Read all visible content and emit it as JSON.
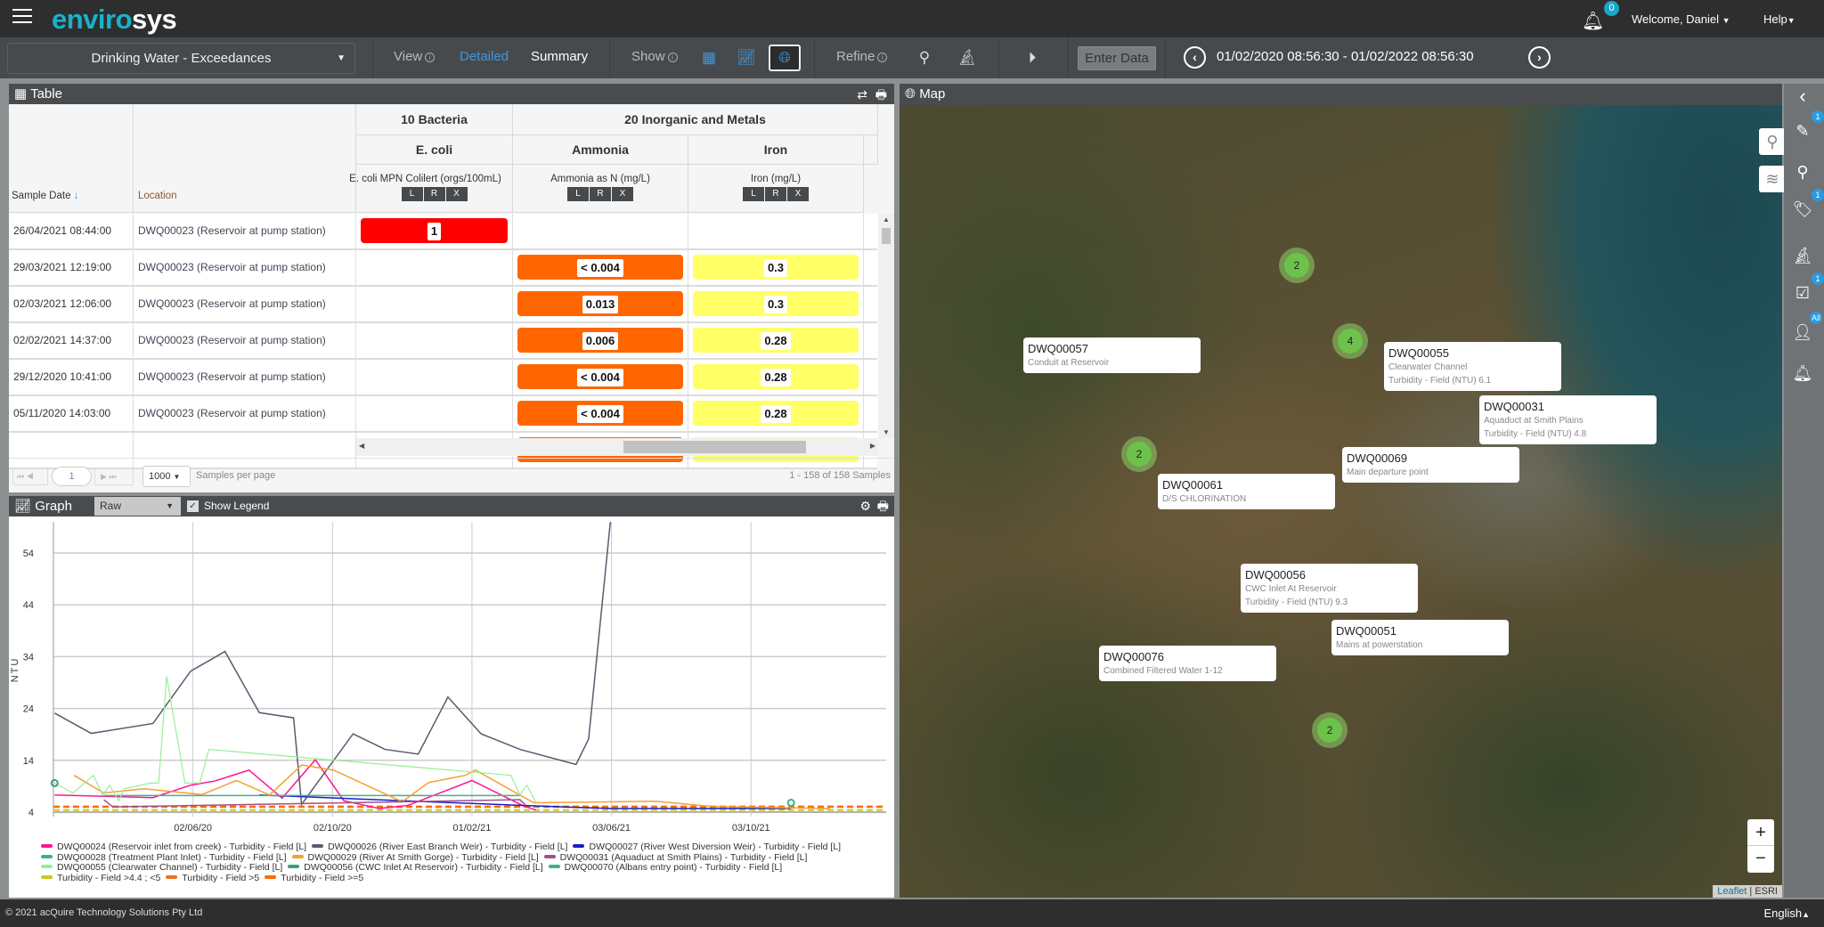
{
  "app": {
    "logo_a": "enviro",
    "logo_b": "sys",
    "notifications": "0",
    "welcome": "Welcome, Daniel",
    "help": "Help"
  },
  "toolbar": {
    "dataset": "Drinking Water - Exceedances",
    "view_label": "View",
    "view_detailed": "Detailed",
    "view_summary": "Summary",
    "show_label": "Show",
    "refine_label": "Refine",
    "enter_data": "Enter Data",
    "date_range": "01/02/2020 08:56:30 - 01/02/2022 08:56:30"
  },
  "table": {
    "title": "Table",
    "headers": {
      "sample_date": "Sample Date",
      "location": "Location",
      "group1": "10 Bacteria",
      "group2": "20 Inorganic and Metals",
      "col_ecoli": "E. coli",
      "col_ammonia": "Ammonia",
      "col_iron": "Iron",
      "sub_ecoli": "E. coli MPN Colilert (orgs/100mL)",
      "sub_ammonia": "Ammonia as N (mg/L)",
      "sub_iron": "Iron (mg/L)",
      "flag_l": "L",
      "flag_r": "R",
      "flag_x": "X"
    },
    "rows": [
      {
        "date": "26/04/2021 08:44:00",
        "location": "DWQ00023 (Reservoir at pump station)",
        "ecoli": "1",
        "ammonia": "",
        "iron": ""
      },
      {
        "date": "29/03/2021 12:19:00",
        "location": "DWQ00023 (Reservoir at pump station)",
        "ecoli": "",
        "ammonia": "< 0.004",
        "iron": "0.3"
      },
      {
        "date": "02/03/2021 12:06:00",
        "location": "DWQ00023 (Reservoir at pump station)",
        "ecoli": "",
        "ammonia": "0.013",
        "iron": "0.3"
      },
      {
        "date": "02/02/2021 14:37:00",
        "location": "DWQ00023 (Reservoir at pump station)",
        "ecoli": "",
        "ammonia": "0.006",
        "iron": "0.28"
      },
      {
        "date": "29/12/2020 10:41:00",
        "location": "DWQ00023 (Reservoir at pump station)",
        "ecoli": "",
        "ammonia": "< 0.004",
        "iron": "0.28"
      },
      {
        "date": "05/11/2020 14:03:00",
        "location": "DWQ00023 (Reservoir at pump station)",
        "ecoli": "",
        "ammonia": "< 0.004",
        "iron": "0.28"
      }
    ],
    "colors": {
      "ecoli": "#ff0000",
      "ammonia": "#ff6600",
      "iron": "#ffff66"
    },
    "pager": {
      "page": "1",
      "per_page": "1000",
      "per_page_label": "Samples per page",
      "summary": "1 - 158 of 158 Samples"
    }
  },
  "graph": {
    "title": "Graph",
    "mode": "Raw",
    "show_legend": "Show Legend"
  },
  "chart_data": {
    "type": "line",
    "ylabel": "NTU",
    "ylim": [
      4,
      60
    ],
    "yticks": [
      4,
      14,
      24,
      34,
      44,
      54
    ],
    "xlim": [
      "2020-02-01",
      "2022-02-01"
    ],
    "xticks": [
      {
        "date": "2020-06-02",
        "label": "02/06/20"
      },
      {
        "date": "2020-10-02",
        "label": "02/10/20"
      },
      {
        "date": "2021-02-01",
        "label": "01/02/21"
      },
      {
        "date": "2021-06-03",
        "label": "03/06/21"
      },
      {
        "date": "2021-10-03",
        "label": "03/10/21"
      }
    ],
    "series": [
      {
        "name": "DWQ00024 (Reservoir inlet from creek) - Turbidity - Field [L]",
        "color": "#ff1493",
        "points": [
          [
            "2020-02-02",
            7.3
          ],
          [
            "2020-04-28",
            6.8
          ],
          [
            "2020-05-31",
            9.2
          ],
          [
            "2020-06-21",
            10.0
          ],
          [
            "2020-07-21",
            12.1
          ],
          [
            "2020-08-19",
            6.7
          ],
          [
            "2020-09-17",
            14.1
          ],
          [
            "2020-10-12",
            6.2
          ],
          [
            "2020-11-12",
            4.7
          ],
          [
            "2020-12-07",
            5.3
          ],
          [
            "2021-02-01",
            10.1
          ],
          [
            "2021-03-17",
            5.3
          ],
          [
            "2021-03-29",
            4.4
          ]
        ]
      },
      {
        "name": "DWQ00026 (River East Branch Weir) - Turbidity - Field [L]",
        "color": "#5a5a70",
        "points": [
          [
            "2020-02-02",
            23.1
          ],
          [
            "2020-03-05",
            19.2
          ],
          [
            "2020-04-28",
            21.1
          ],
          [
            "2020-05-31",
            31.2
          ],
          [
            "2020-06-30",
            35.0
          ],
          [
            "2020-07-30",
            23.2
          ],
          [
            "2020-08-29",
            22.2
          ],
          [
            "2020-09-05",
            5.5
          ],
          [
            "2020-10-20",
            19.1
          ],
          [
            "2020-11-17",
            16.1
          ],
          [
            "2020-12-16",
            15.2
          ],
          [
            "2021-01-11",
            26.2
          ],
          [
            "2021-02-09",
            19.1
          ],
          [
            "2021-03-15",
            16.1
          ],
          [
            "2021-05-03",
            13.2
          ],
          [
            "2021-05-14",
            18.1
          ],
          [
            "2021-06-02",
            60
          ]
        ]
      },
      {
        "name": "DWQ00027 (River West Diversion Weir) - Turbidity - Field [L]",
        "color": "#1c1cc8",
        "points": [
          [
            "2020-07-30",
            7.3
          ],
          [
            "2021-03-15",
            5.3
          ],
          [
            "2021-06-02",
            4.7
          ],
          [
            "2021-11-07",
            4.7
          ]
        ]
      },
      {
        "name": "DWQ00028 (Treatment Plant Inlet) - Turbidity - Field [L]",
        "color": "#3cb38a",
        "points": [
          [
            "2020-03-16",
            7.2
          ],
          [
            "2021-03-15",
            7.2
          ]
        ]
      },
      {
        "name": "DWQ00029 (River At Smith Gorge) - Turbidity - Field [L]",
        "color": "#f5a030",
        "points": [
          [
            "2020-02-19",
            11.1
          ],
          [
            "2020-03-16",
            7.7
          ],
          [
            "2020-04-20",
            8.5
          ],
          [
            "2020-06-10",
            7.4
          ],
          [
            "2020-07-10",
            10.1
          ],
          [
            "2020-08-08",
            7.3
          ],
          [
            "2020-09-05",
            13.1
          ],
          [
            "2020-10-03",
            12.1
          ],
          [
            "2020-12-02",
            6.0
          ],
          [
            "2020-12-25",
            9.7
          ],
          [
            "2021-01-26",
            11.1
          ],
          [
            "2021-02-04",
            12.1
          ],
          [
            "2021-03-27",
            5.8
          ],
          [
            "2021-07-11",
            6.1
          ],
          [
            "2021-08-30",
            5.1
          ],
          [
            "2021-12-11",
            4.7
          ]
        ]
      },
      {
        "name": "DWQ00031 (Aquaduct at Smith Plains) - Turbidity - Field [L]",
        "color": "#a0508a",
        "points": [
          [
            "2020-03-16",
            6.4
          ],
          [
            "2020-03-24",
            5.0
          ],
          [
            "2021-03-15",
            6.4
          ],
          [
            "2021-03-20",
            5.3
          ]
        ]
      },
      {
        "name": "DWQ00055 (Clearwater Channel) - Turbidity - Field [L]",
        "color": "#98ee98",
        "points": [
          [
            "2020-02-02",
            9.6
          ],
          [
            "2020-02-18",
            7.7
          ],
          [
            "2020-03-07",
            11.1
          ],
          [
            "2020-03-15",
            7.3
          ],
          [
            "2020-03-21",
            9.2
          ],
          [
            "2020-03-29",
            6.2
          ],
          [
            "2020-04-03",
            8.5
          ],
          [
            "2020-04-26",
            9.6
          ],
          [
            "2020-05-03",
            9.6
          ],
          [
            "2020-05-10",
            30.2
          ],
          [
            "2020-05-26",
            9.6
          ],
          [
            "2020-06-08",
            9.6
          ],
          [
            "2020-06-16",
            16.1
          ],
          [
            "2021-03-07",
            11.1
          ],
          [
            "2021-03-15",
            7.3
          ],
          [
            "2021-03-21",
            9.2
          ],
          [
            "2021-03-29",
            5.8
          ]
        ]
      },
      {
        "name": "DWQ00056 (CWC Inlet At Reservoir) - Turbidity - Field [L]",
        "color": "#3aa07a",
        "points": [
          [
            "2020-02-02",
            9.6
          ]
        ]
      },
      {
        "name": "DWQ00070 (Albans entry point) - Turbidity - Field [L]",
        "color": "#3cb38a",
        "points": [
          [
            "2021-11-07",
            5.8
          ]
        ]
      }
    ],
    "thresholds": [
      {
        "name": "Turbidity - Field >4.4 ; <5",
        "color": "#c8c81e",
        "values": [
          4.4,
          5.0
        ]
      },
      {
        "name": "Turbidity - Field >5",
        "color": "#f07020",
        "values": [
          5.0
        ]
      },
      {
        "name": "Turbidity - Field >=5",
        "color": "#ff6a00",
        "values": [
          5.1
        ]
      }
    ]
  },
  "map": {
    "title": "Map",
    "clusters": [
      "2",
      "4",
      "2",
      "2"
    ],
    "labels": [
      {
        "id": "DWQ00057",
        "lines": [
          "Conduit at Reservoir"
        ]
      },
      {
        "id": "DWQ00055",
        "lines": [
          "Clearwater Channel",
          "Turbidity - Field (NTU) 6.1"
        ]
      },
      {
        "id": "DWQ00031",
        "lines": [
          "Aquaduct at Smith Plains",
          "Turbidity - Field (NTU) 4.8"
        ]
      },
      {
        "id": "DWQ00069",
        "lines": [
          "Main departure point"
        ]
      },
      {
        "id": "DWQ00061",
        "lines": [
          "D/S CHLORINATION"
        ]
      },
      {
        "id": "DWQ00056",
        "lines": [
          "CWC Inlet At Reservoir",
          "Turbidity - Field (NTU) 9.3"
        ]
      },
      {
        "id": "DWQ00051",
        "lines": [
          "Mains at powerstation"
        ]
      },
      {
        "id": "DWQ00076",
        "lines": [
          "Combined Filtered Water 1-12"
        ]
      }
    ],
    "zoom_in": "+",
    "zoom_out": "−",
    "attribution_link": "Leaflet",
    "attribution_sep": " | ",
    "attribution_src": "ESRI"
  },
  "sidebar": {
    "badges": {
      "sampling": "1",
      "tags": "1",
      "tasks": "1",
      "users": "All"
    }
  },
  "footer": {
    "copyright": "© 2021 acQuire Technology Solutions Pty Ltd",
    "language": "English"
  }
}
